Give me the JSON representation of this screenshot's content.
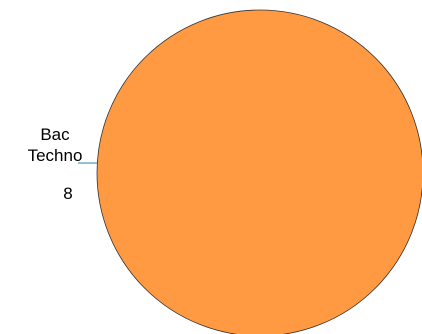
{
  "chart_data": {
    "type": "pie",
    "title": "",
    "slices": [
      {
        "label_lines": [
          "Bac",
          "Techno"
        ],
        "value": 8,
        "value_label": "8",
        "color": "#ff9a42"
      }
    ],
    "legend": "none",
    "slice_border_color": "#333333",
    "leader_line_color": "#2f7f9f"
  }
}
